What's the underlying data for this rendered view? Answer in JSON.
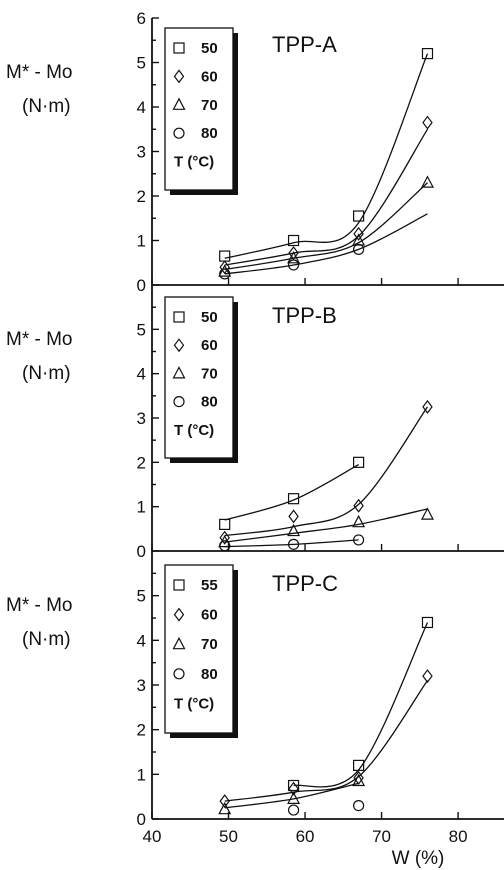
{
  "figure": {
    "xlabel": "W (%)",
    "x_ticks": [
      "40",
      "50",
      "60",
      "70",
      "80"
    ]
  },
  "chart_data": [
    {
      "type": "scatter",
      "title": "TPP-A",
      "ylabel_line1": "M* - Mo",
      "ylabel_line2": "(N·m)",
      "xlim": [
        40,
        86
      ],
      "ylim": [
        0,
        6
      ],
      "y_ticks": [
        "0",
        "1",
        "2",
        "3",
        "4",
        "5",
        "6"
      ],
      "legend_title": "T (°C)",
      "series": [
        {
          "name": "50",
          "marker": "square",
          "points": [
            [
              49.5,
              0.65
            ],
            [
              58.5,
              1.0
            ],
            [
              67,
              1.55
            ],
            [
              76,
              5.2
            ]
          ],
          "curve": [
            [
              49.5,
              0.6
            ],
            [
              58.5,
              0.95
            ],
            [
              67,
              1.4
            ],
            [
              76,
              5.2
            ]
          ]
        },
        {
          "name": "60",
          "marker": "diamond",
          "points": [
            [
              49.5,
              0.4
            ],
            [
              58.5,
              0.72
            ],
            [
              67,
              1.15
            ],
            [
              76,
              3.65
            ]
          ],
          "curve": [
            [
              49.5,
              0.45
            ],
            [
              58.5,
              0.72
            ],
            [
              67,
              1.1
            ],
            [
              76,
              3.5
            ]
          ]
        },
        {
          "name": "70",
          "marker": "triangle",
          "points": [
            [
              49.5,
              0.3
            ],
            [
              58.5,
              0.6
            ],
            [
              67,
              1.0
            ],
            [
              76,
              2.3
            ]
          ],
          "curve": [
            [
              49.5,
              0.35
            ],
            [
              58.5,
              0.6
            ],
            [
              67,
              0.95
            ],
            [
              76,
              2.3
            ]
          ]
        },
        {
          "name": "80",
          "marker": "circle",
          "points": [
            [
              49.5,
              0.25
            ],
            [
              58.5,
              0.45
            ],
            [
              67,
              0.8
            ]
          ],
          "curve": [
            [
              49.5,
              0.25
            ],
            [
              58.5,
              0.45
            ],
            [
              67,
              0.8
            ],
            [
              76,
              1.6
            ]
          ]
        }
      ]
    },
    {
      "type": "scatter",
      "title": "TPP-B",
      "ylabel_line1": "M* - Mo",
      "ylabel_line2": "(N·m)",
      "xlim": [
        40,
        86
      ],
      "ylim": [
        0,
        6
      ],
      "y_ticks": [
        "0",
        "1",
        "2",
        "3",
        "4",
        "5"
      ],
      "legend_title": "T (°C)",
      "series": [
        {
          "name": "50",
          "marker": "square",
          "points": [
            [
              49.5,
              0.6
            ],
            [
              58.5,
              1.18
            ],
            [
              67,
              2.0
            ]
          ],
          "curve": [
            [
              49.5,
              0.7
            ],
            [
              58.5,
              1.15
            ],
            [
              67,
              1.95
            ]
          ]
        },
        {
          "name": "60",
          "marker": "diamond",
          "points": [
            [
              49.5,
              0.3
            ],
            [
              58.5,
              0.78
            ],
            [
              67,
              1.02
            ],
            [
              76,
              3.25
            ]
          ],
          "curve": [
            [
              49.5,
              0.35
            ],
            [
              58.5,
              0.55
            ],
            [
              67,
              1.05
            ],
            [
              76,
              3.25
            ]
          ]
        },
        {
          "name": "70",
          "marker": "triangle",
          "points": [
            [
              49.5,
              0.2
            ],
            [
              58.5,
              0.45
            ],
            [
              67,
              0.65
            ],
            [
              76,
              0.82
            ]
          ],
          "curve": [
            [
              49.5,
              0.2
            ],
            [
              58.5,
              0.4
            ],
            [
              67,
              0.6
            ],
            [
              76,
              0.95
            ]
          ]
        },
        {
          "name": "80",
          "marker": "circle",
          "points": [
            [
              49.5,
              0.12
            ],
            [
              58.5,
              0.15
            ],
            [
              67,
              0.25
            ]
          ],
          "curve": [
            [
              49.5,
              0.1
            ],
            [
              58.5,
              0.15
            ],
            [
              67,
              0.25
            ]
          ]
        }
      ]
    },
    {
      "type": "scatter",
      "title": "TPP-C",
      "ylabel_line1": "M* - Mo",
      "ylabel_line2": "(N·m)",
      "xlim": [
        40,
        86
      ],
      "ylim": [
        0,
        6
      ],
      "y_ticks": [
        "0",
        "1",
        "2",
        "3",
        "4",
        "5"
      ],
      "legend_title": "T (°C)",
      "series": [
        {
          "name": "55",
          "marker": "square",
          "points": [
            [
              58.5,
              0.75
            ],
            [
              67,
              1.2
            ],
            [
              76,
              4.4
            ]
          ],
          "curve": [
            [
              58.5,
              0.75
            ],
            [
              67,
              1.1
            ],
            [
              76,
              4.4
            ]
          ]
        },
        {
          "name": "60",
          "marker": "diamond",
          "points": [
            [
              49.5,
              0.4
            ],
            [
              58.5,
              0.68
            ],
            [
              67,
              0.92
            ],
            [
              76,
              3.2
            ]
          ],
          "curve": [
            [
              49.5,
              0.4
            ],
            [
              58.5,
              0.6
            ],
            [
              67,
              0.95
            ],
            [
              76,
              3.1
            ]
          ]
        },
        {
          "name": "70",
          "marker": "triangle",
          "points": [
            [
              49.5,
              0.22
            ],
            [
              58.5,
              0.45
            ],
            [
              67,
              0.85
            ]
          ],
          "curve": [
            [
              49.5,
              0.25
            ],
            [
              58.5,
              0.45
            ],
            [
              67,
              0.8
            ]
          ]
        },
        {
          "name": "80",
          "marker": "circle",
          "points": [
            [
              58.5,
              0.2
            ],
            [
              67,
              0.3
            ]
          ],
          "curve": []
        }
      ]
    }
  ]
}
